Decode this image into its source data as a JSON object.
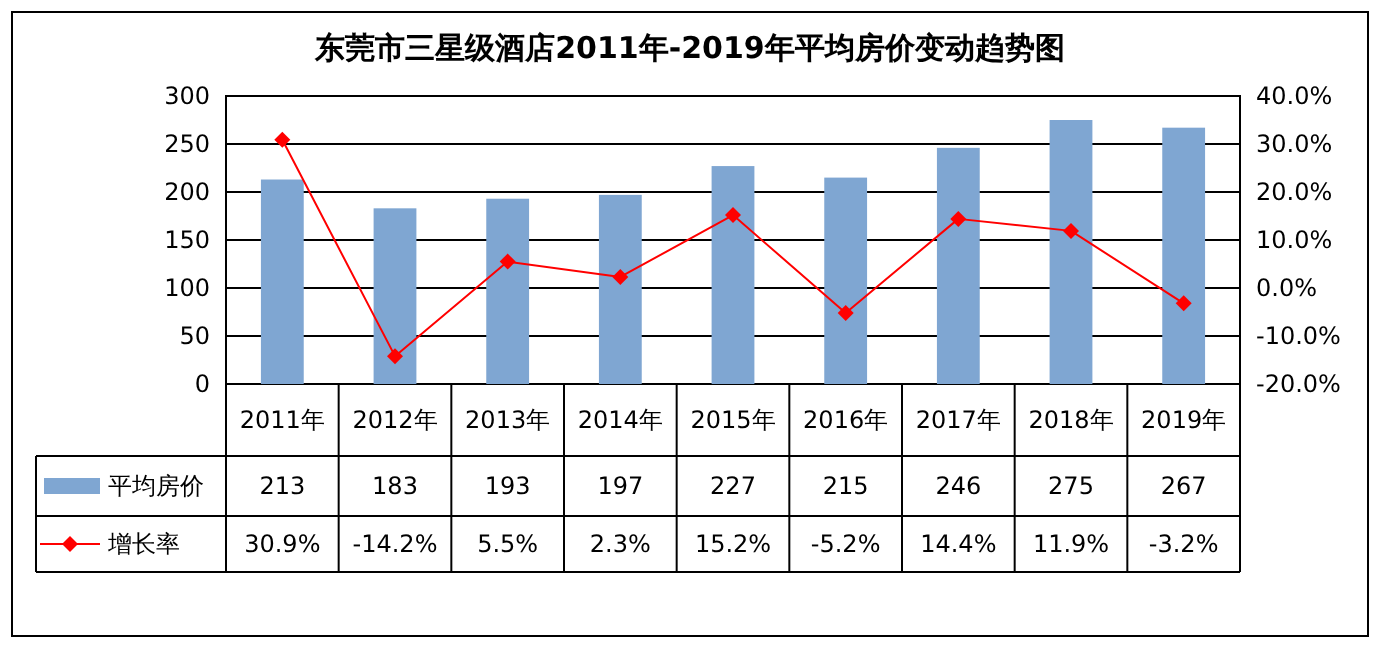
{
  "chart_data": {
    "type": "bar",
    "title": "东莞市三星级酒店2011年-2019年平均房价变动趋势图",
    "categories": [
      "2011年",
      "2012年",
      "2013年",
      "2014年",
      "2015年",
      "2016年",
      "2017年",
      "2018年",
      "2019年"
    ],
    "series": [
      {
        "name": "平均房价",
        "color": "#7fa6d2",
        "values": [
          213,
          183,
          193,
          197,
          227,
          215,
          246,
          275,
          267
        ]
      },
      {
        "name": "增长率",
        "type": "line",
        "axis": "y2",
        "color": "#ff0000",
        "marker": "diamond",
        "values": [
          30.9,
          -14.2,
          5.5,
          2.3,
          15.2,
          -5.2,
          14.4,
          11.9,
          -3.2
        ],
        "value_labels": [
          "30.9%",
          "-14.2%",
          "5.5%",
          "2.3%",
          "15.2%",
          "-5.2%",
          "14.4%",
          "11.9%",
          "-3.2%"
        ]
      }
    ],
    "ylim": [
      0,
      300
    ],
    "yticks": [
      0,
      50,
      100,
      150,
      200,
      250,
      300
    ],
    "y2lim": [
      -20,
      40
    ],
    "y2ticks": [
      {
        "value": -20,
        "label": "-20.0%"
      },
      {
        "value": -10,
        "label": "-10.0%"
      },
      {
        "value": 0,
        "label": "0.0%"
      },
      {
        "value": 10,
        "label": "10.0%"
      },
      {
        "value": 20,
        "label": "20.0%"
      },
      {
        "value": 30,
        "label": "30.0%"
      },
      {
        "value": 40,
        "label": "40.0%"
      }
    ],
    "grid": "y",
    "data_labels": true,
    "legend": "bottom"
  }
}
